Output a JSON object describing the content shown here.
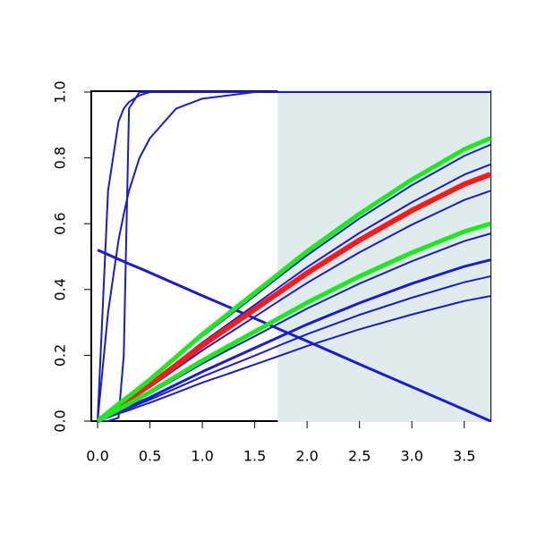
{
  "chart_data": {
    "type": "line",
    "x": [
      0,
      0.1,
      0.2,
      0.25,
      0.3,
      0.4,
      0.5,
      0.75,
      1,
      1.25,
      1.5,
      1.75,
      2,
      2.5,
      3,
      3.5,
      3.75
    ],
    "xlim": [
      -0.06,
      3.75
    ],
    "ylim": [
      0,
      1
    ],
    "xticks": [
      {
        "value": 0,
        "label": "0.0"
      },
      0.5,
      {
        "value": 1,
        "label": "1.0"
      },
      1.5,
      {
        "value": 2,
        "label": "2.0"
      },
      2.5,
      {
        "value": 3,
        "label": "3.0"
      },
      3.5
    ],
    "yticks": [
      {
        "value": 0,
        "label": "0.0"
      },
      0.2,
      0.4,
      0.6,
      0.8,
      {
        "value": 1,
        "label": "1.0"
      }
    ],
    "shaded_region": {
      "xlim": [
        1.72,
        3.75
      ],
      "color": "#dfeceb"
    },
    "series": [
      {
        "color": "#1a1ad6",
        "width": 2,
        "values": [
          0,
          0,
          0.01,
          0.2,
          0.95,
          1,
          1,
          1,
          1,
          1,
          1,
          1,
          1,
          1,
          1,
          1,
          1
        ]
      },
      {
        "color": "#1a1ad6",
        "width": 2,
        "values": [
          0,
          0.7,
          0.91,
          0.95,
          0.97,
          0.99,
          1,
          1,
          1,
          1,
          1,
          1,
          1,
          1,
          1,
          1,
          1
        ]
      },
      {
        "color": "#1a1ad6",
        "width": 2,
        "values": [
          0,
          0.33,
          0.55,
          0.63,
          0.7,
          0.8,
          0.86,
          0.95,
          0.98,
          0.99,
          1,
          1,
          1,
          1,
          1,
          1,
          1
        ]
      },
      {
        "color": "#1a1ad6",
        "width": 3,
        "values": [
          0.52,
          0.506,
          0.492,
          0.485,
          0.478,
          0.465,
          0.451,
          0.416,
          0.381,
          0.347,
          0.312,
          0.277,
          0.243,
          0.173,
          0.104,
          0.035,
          0
        ]
      },
      {
        "color": "#1a1ad6",
        "width": 2,
        "values": [
          0,
          0.025,
          0.05,
          0.062,
          0.074,
          0.099,
          0.123,
          0.191,
          0.258,
          0.319,
          0.381,
          0.443,
          0.504,
          0.616,
          0.717,
          0.806,
          0.84
        ]
      },
      {
        "color": "#1a1ad6",
        "width": 2,
        "values": [
          0,
          0.023,
          0.047,
          0.058,
          0.069,
          0.092,
          0.115,
          0.177,
          0.239,
          0.296,
          0.353,
          0.411,
          0.468,
          0.572,
          0.665,
          0.749,
          0.78
        ]
      },
      {
        "color": "#1a1ad6",
        "width": 2,
        "values": [
          0,
          0.021,
          0.042,
          0.052,
          0.062,
          0.083,
          0.103,
          0.159,
          0.215,
          0.266,
          0.317,
          0.369,
          0.42,
          0.513,
          0.597,
          0.672,
          0.7
        ]
      },
      {
        "color": "#1a1ad6",
        "width": 2,
        "values": [
          0,
          0.017,
          0.034,
          0.042,
          0.05,
          0.067,
          0.084,
          0.129,
          0.175,
          0.217,
          0.258,
          0.3,
          0.342,
          0.418,
          0.486,
          0.547,
          0.57
        ]
      },
      {
        "color": "#1a1ad6",
        "width": 3,
        "values": [
          0,
          0.015,
          0.029,
          0.036,
          0.043,
          0.058,
          0.072,
          0.111,
          0.15,
          0.186,
          0.222,
          0.258,
          0.294,
          0.359,
          0.418,
          0.47,
          0.49
        ]
      },
      {
        "color": "#1a1ad6",
        "width": 2,
        "values": [
          0,
          0.013,
          0.026,
          0.033,
          0.039,
          0.052,
          0.065,
          0.1,
          0.135,
          0.167,
          0.199,
          0.232,
          0.264,
          0.323,
          0.375,
          0.422,
          0.44
        ]
      },
      {
        "color": "#1a1ad6",
        "width": 2,
        "values": [
          0,
          0.011,
          0.023,
          0.028,
          0.033,
          0.045,
          0.056,
          0.086,
          0.117,
          0.144,
          0.172,
          0.2,
          0.228,
          0.279,
          0.324,
          0.365,
          0.38
        ]
      },
      {
        "color": "#ff1a1a",
        "width": 6,
        "values": [
          0,
          0.023,
          0.045,
          0.056,
          0.066,
          0.089,
          0.11,
          0.17,
          0.23,
          0.285,
          0.34,
          0.395,
          0.45,
          0.55,
          0.64,
          0.72,
          0.75
        ]
      },
      {
        "color": "#1aeb1a",
        "width": 5,
        "values": [
          0,
          0.026,
          0.052,
          0.064,
          0.076,
          0.101,
          0.126,
          0.195,
          0.264,
          0.327,
          0.39,
          0.453,
          0.516,
          0.63,
          0.734,
          0.826,
          0.86
        ]
      },
      {
        "color": "#1aeb1a",
        "width": 5,
        "values": [
          0,
          0.018,
          0.036,
          0.044,
          0.053,
          0.071,
          0.088,
          0.136,
          0.184,
          0.228,
          0.272,
          0.316,
          0.36,
          0.44,
          0.512,
          0.576,
          0.6
        ]
      }
    ]
  }
}
